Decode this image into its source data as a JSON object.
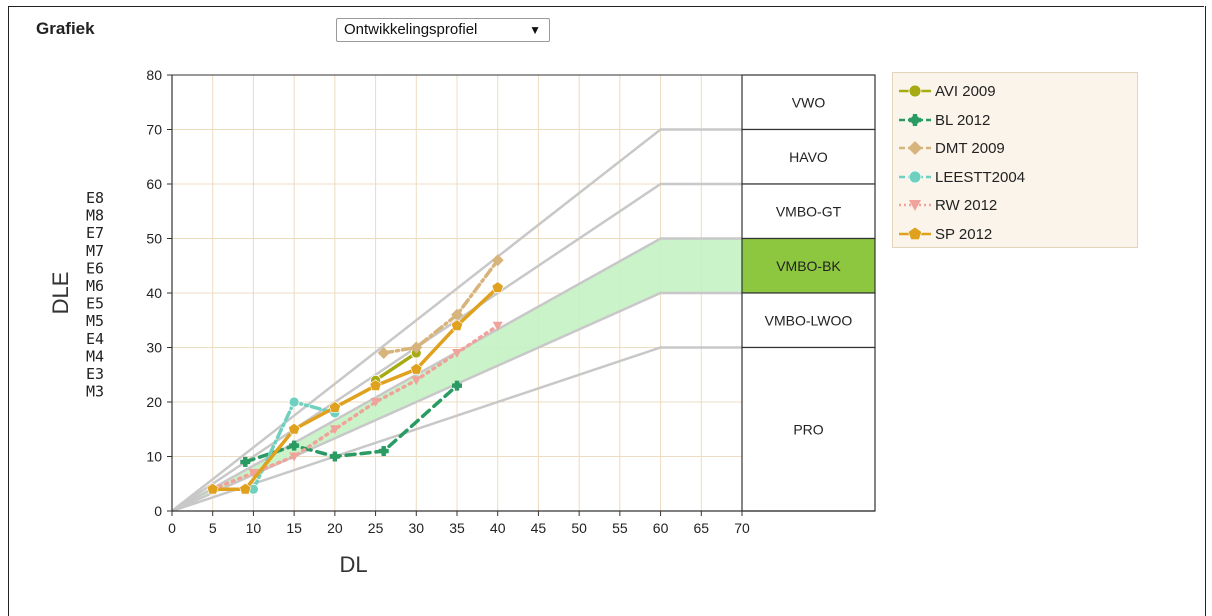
{
  "header": {
    "title": "Grafiek",
    "dropdown_value": "Ontwikkelingsprofiel",
    "dropdown_arrow": "▼"
  },
  "chart_data": {
    "type": "line",
    "xlabel": "DL",
    "ylabel": "DLE",
    "xlim": [
      0,
      70
    ],
    "ylim": [
      0,
      80
    ],
    "xticks": [
      "0",
      "5",
      "10",
      "15",
      "20",
      "25",
      "30",
      "35",
      "40",
      "45",
      "50",
      "55",
      "60",
      "65",
      "70"
    ],
    "yticks": [
      "0",
      "10",
      "20",
      "30",
      "40",
      "50",
      "60",
      "70",
      "80"
    ],
    "grid": true,
    "legend_position": "right",
    "level_marks": [
      "E8",
      "M8",
      "E7",
      "M7",
      "E6",
      "M6",
      "E5",
      "M5",
      "E4",
      "M4",
      "E3",
      "M3"
    ],
    "zones": [
      {
        "label": "VWO",
        "from": 70,
        "to": 80,
        "highlight": false
      },
      {
        "label": "HAVO",
        "from": 60,
        "to": 70,
        "highlight": false
      },
      {
        "label": "VMBO-GT",
        "from": 50,
        "to": 60,
        "highlight": false
      },
      {
        "label": "VMBO-BK",
        "from": 40,
        "to": 50,
        "highlight": true
      },
      {
        "label": "VMBO-LWOO",
        "from": 30,
        "to": 40,
        "highlight": false
      },
      {
        "label": "PRO",
        "from": 0,
        "to": 30,
        "highlight": false
      }
    ],
    "reference_lines": [
      {
        "end_x": 60,
        "end_y": 70
      },
      {
        "end_x": 60,
        "end_y": 60
      },
      {
        "end_x": 60,
        "end_y": 50
      },
      {
        "end_x": 60,
        "end_y": 40
      },
      {
        "end_x": 60,
        "end_y": 30
      }
    ],
    "band": {
      "upper_end_y": 50,
      "lower_end_y": 40,
      "end_x": 60,
      "color": "#c4f2c4"
    },
    "series": [
      {
        "name": "AVI 2009",
        "color": "#a6ab14",
        "dash": "",
        "marker": "circle",
        "x": [
          25,
          30
        ],
        "y": [
          24,
          29
        ]
      },
      {
        "name": "BL 2012",
        "color": "#2a9b63",
        "dash": "9,6",
        "marker": "cross",
        "x": [
          9,
          15,
          20,
          26,
          35
        ],
        "y": [
          9,
          12,
          10,
          11,
          23
        ]
      },
      {
        "name": "DMT 2009",
        "color": "#d7b47c",
        "dash": "9,4,2,4",
        "marker": "diamond",
        "x": [
          26,
          30,
          35,
          40
        ],
        "y": [
          29,
          30,
          36,
          46
        ]
      },
      {
        "name": "LEESTT2004",
        "color": "#6fd0c0",
        "dash": "9,4,2,4",
        "marker": "circle",
        "x": [
          10,
          15,
          20
        ],
        "y": [
          4,
          20,
          18
        ]
      },
      {
        "name": "RW 2012",
        "color": "#f0a39a",
        "dash": "2,5",
        "marker": "triangle",
        "x": [
          5,
          10,
          15,
          20,
          25,
          30,
          35,
          40
        ],
        "y": [
          4,
          7,
          10,
          15,
          20,
          24,
          29,
          34
        ]
      },
      {
        "name": "SP 2012",
        "color": "#e0a11e",
        "dash": "",
        "marker": "pentagon",
        "x": [
          5,
          9,
          15,
          20,
          25,
          30,
          35,
          40
        ],
        "y": [
          4,
          4,
          15,
          19,
          23,
          26,
          34,
          41
        ]
      }
    ]
  }
}
